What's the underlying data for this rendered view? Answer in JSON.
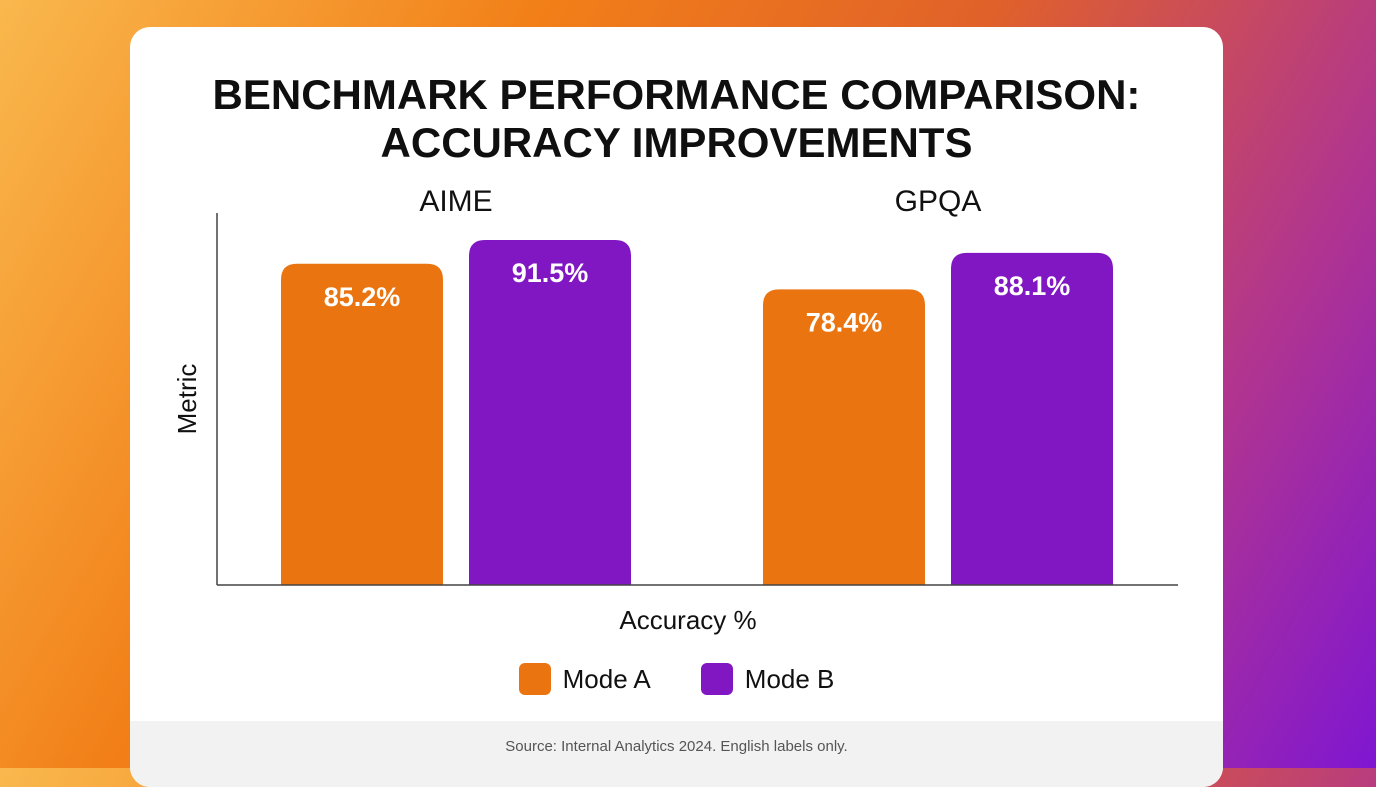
{
  "title_line1": "BENCHMARK PERFORMANCE COMPARISON:",
  "title_line2": "ACCURACY IMPROVEMENTS",
  "footer": "Source: Internal Analytics 2024. English labels only.",
  "colors": {
    "mode_a": "#ea7510",
    "mode_b": "#8117c3"
  },
  "chart_data": {
    "type": "bar",
    "title": "BENCHMARK PERFORMANCE COMPARISON: ACCURACY IMPROVEMENTS",
    "categories": [
      "AIME",
      "GPQA"
    ],
    "series": [
      {
        "name": "Mode A",
        "values": [
          85.2,
          78.4
        ],
        "labels": [
          "85.2%",
          "78.4%"
        ]
      },
      {
        "name": "Mode B",
        "values": [
          91.5,
          88.1
        ],
        "labels": [
          "91.5%",
          "88.1%"
        ]
      }
    ],
    "xlabel": "Accuracy %",
    "ylabel": "Metric",
    "grid": false,
    "legend": "bottom"
  }
}
